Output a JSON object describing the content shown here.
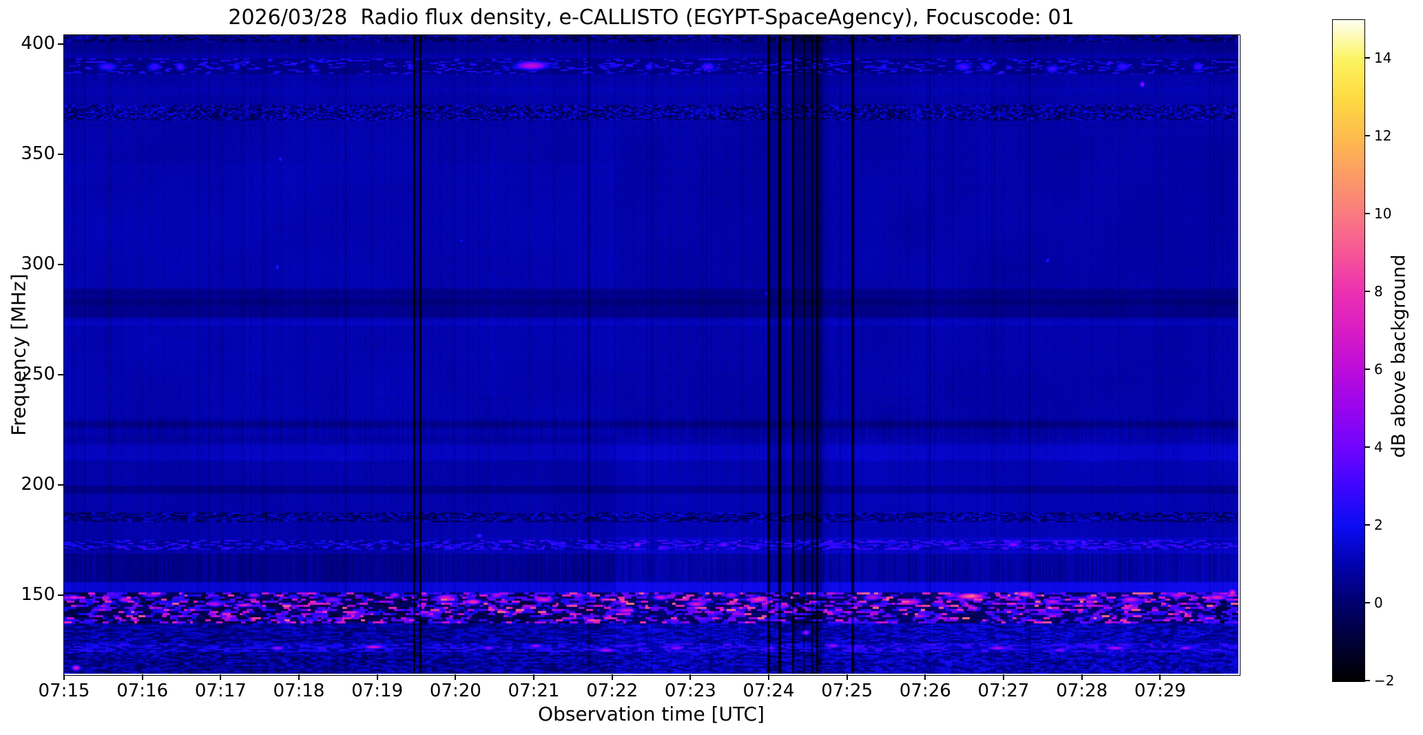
{
  "figure": {
    "title": "2026/03/28  Radio flux density, e-CALLISTO (EGYPT-SpaceAgency), Focuscode: 01"
  },
  "chart_data": {
    "type": "heatmap",
    "title": "2026/03/28  Radio flux density, e-CALLISTO (EGYPT-SpaceAgency), Focuscode: 01",
    "xlabel": "Observation time [UTC]",
    "ylabel": "Frequency [MHz]",
    "colorbar_label": "dB above background",
    "time_axis": {
      "start": "07:15",
      "end": "07:30",
      "span_min": 15,
      "tick_labels": [
        "07:15",
        "07:16",
        "07:17",
        "07:18",
        "07:19",
        "07:20",
        "07:21",
        "07:22",
        "07:23",
        "07:24",
        "07:25",
        "07:26",
        "07:27",
        "07:28",
        "07:29"
      ]
    },
    "freq_axis": {
      "min": 114.2,
      "max": 404.2,
      "unit": "MHz",
      "ticks": [
        400,
        350,
        300,
        250,
        200,
        150
      ]
    },
    "value_axis": {
      "min": -2,
      "max": 15,
      "unit": "dB",
      "ticks": [
        14,
        12,
        10,
        8,
        6,
        4,
        2,
        0,
        -2
      ]
    },
    "colormap": {
      "name": "gnuplot2-like",
      "stops": [
        {
          "v": -2,
          "c": [
            0,
            0,
            0
          ]
        },
        {
          "v": -1,
          "c": [
            0,
            0,
            55
          ]
        },
        {
          "v": 0,
          "c": [
            0,
            0,
            110
          ]
        },
        {
          "v": 1,
          "c": [
            2,
            2,
            175
          ]
        },
        {
          "v": 2,
          "c": [
            12,
            12,
            245
          ]
        },
        {
          "v": 3,
          "c": [
            62,
            5,
            255
          ]
        },
        {
          "v": 4,
          "c": [
            112,
            5,
            255
          ]
        },
        {
          "v": 5,
          "c": [
            152,
            5,
            238
          ]
        },
        {
          "v": 6,
          "c": [
            188,
            12,
            218
          ]
        },
        {
          "v": 7,
          "c": [
            216,
            28,
            198
          ]
        },
        {
          "v": 8,
          "c": [
            236,
            48,
            178
          ]
        },
        {
          "v": 9,
          "c": [
            246,
            86,
            152
          ]
        },
        {
          "v": 10,
          "c": [
            250,
            122,
            128
          ]
        },
        {
          "v": 11,
          "c": [
            252,
            156,
            102
          ]
        },
        {
          "v": 12,
          "c": [
            253,
            188,
            78
          ]
        },
        {
          "v": 13,
          "c": [
            254,
            218,
            66
          ]
        },
        {
          "v": 14,
          "c": [
            252,
            244,
            98
          ]
        },
        {
          "v": 15,
          "c": [
            255,
            255,
            242
          ]
        }
      ]
    },
    "render": {
      "seed": 42,
      "base": {
        "value": 1.05,
        "noise": 0.3
      },
      "regions": [
        {
          "t0": 7.05,
          "t1": 15,
          "f0": 114,
          "f1": 176,
          "dv": 0.45
        },
        {
          "t0": 7.05,
          "t1": 15,
          "f0": 176,
          "f1": 222,
          "dv": 0.15
        },
        {
          "t0": 4.62,
          "t1": 7.05,
          "f0": 114,
          "f1": 176,
          "dv": 0.12
        },
        {
          "t0": 0,
          "t1": 7.05,
          "f0": 222,
          "f1": 345,
          "dv": 0.08
        },
        {
          "t0": 7.05,
          "t1": 15,
          "f0": 290,
          "f1": 405,
          "dv": -0.06
        },
        {
          "t0": 14.72,
          "t1": 15,
          "f0": 137,
          "f1": 151,
          "dv": -0.5
        }
      ],
      "bands": [
        {
          "f0": 401,
          "f1": 404.2,
          "mode": "speckle",
          "base": -0.7,
          "var": 1.1,
          "run": 3
        },
        {
          "f0": 396,
          "f1": 401,
          "mode": "dim",
          "dv": -0.35
        },
        {
          "f0": 386.5,
          "f1": 393.5,
          "mode": "dim",
          "dv": -0.2
        },
        {
          "f0": 386.5,
          "f1": 393.5,
          "mode": "dashes",
          "prob": 0.22,
          "lo": 0.8,
          "hi": 2.0,
          "run": 4
        },
        {
          "f0": 377,
          "f1": 381,
          "mode": "dim",
          "dv": 0.1
        },
        {
          "f0": 365.5,
          "f1": 372.5,
          "mode": "speckle",
          "base": -0.3,
          "var": 1.4,
          "run": 2
        },
        {
          "f0": 276,
          "f1": 289,
          "mode": "dim",
          "dv": -0.5
        },
        {
          "f0": 281.5,
          "f1": 284.5,
          "mode": "dim",
          "dv": -0.25
        },
        {
          "f0": 272,
          "f1": 275,
          "mode": "dim",
          "dv": 0.2
        },
        {
          "f0": 226,
          "f1": 229,
          "mode": "dim",
          "dv": -0.45
        },
        {
          "f0": 219,
          "f1": 231,
          "mode": "hatch",
          "amp": 0.3,
          "dv": 0
        },
        {
          "f0": 211,
          "f1": 218,
          "mode": "dim",
          "dv": 0.3
        },
        {
          "f0": 196,
          "f1": 199.5,
          "mode": "dim",
          "dv": -0.55
        },
        {
          "f0": 183,
          "f1": 187.5,
          "mode": "speckle",
          "base": -0.5,
          "var": 1.3,
          "run": 3
        },
        {
          "f0": 170.5,
          "f1": 175,
          "mode": "dashes",
          "prob": 0.45,
          "lo": 0.6,
          "hi": 2.0,
          "run": 4
        },
        {
          "f0": 156,
          "f1": 168.5,
          "mode": "hatch",
          "amp": 0.55,
          "dv": -0.3
        },
        {
          "f0": 151,
          "f1": 155.5,
          "mode": "dim",
          "dv": 0.55
        },
        {
          "f0": 137,
          "f1": 151,
          "mode": "rfi"
        },
        {
          "f0": 128,
          "f1": 137,
          "mode": "speckle",
          "base": -0.25,
          "var": 1.0,
          "run": 5
        },
        {
          "f0": 124,
          "f1": 128,
          "mode": "dashes",
          "prob": 0.5,
          "lo": 0.5,
          "hi": 1.8,
          "run": 5
        },
        {
          "f0": 114.2,
          "f1": 124,
          "mode": "speckle",
          "base": -0.35,
          "var": 1.1,
          "run": 4
        }
      ],
      "vlines": [
        {
          "t": 4.47,
          "w": 3,
          "dv": -2.6
        },
        {
          "t": 4.55,
          "w": 3,
          "dv": -2.6
        },
        {
          "t": 6.7,
          "w": 2,
          "dv": -1.0
        },
        {
          "t": 9.0,
          "w": 4,
          "dv": -2.8
        },
        {
          "t": 9.14,
          "w": 4,
          "dv": -2.8
        },
        {
          "t": 9.31,
          "w": 3,
          "dv": -2.8
        },
        {
          "t": 9.45,
          "w": 2,
          "dv": -1.5
        },
        {
          "t": 9.55,
          "w": 2,
          "dv": -2.0
        },
        {
          "t": 9.62,
          "w": 3,
          "dv": -2.8
        },
        {
          "t": 10.07,
          "w": 4,
          "dv": -2.8
        },
        {
          "t": 11.06,
          "w": 2,
          "dv": -0.7
        },
        {
          "t": 12.33,
          "w": 2,
          "dv": -0.9
        }
      ],
      "smears": [
        {
          "t0": 9.28,
          "t1": 9.72,
          "dv": -0.75
        },
        {
          "t0": 8.98,
          "t1": 9.25,
          "dv": -0.25
        }
      ],
      "blobs": [
        {
          "t": 0.55,
          "f": 390,
          "wt": 0.3,
          "hf": 4.5,
          "v": 3.2
        },
        {
          "t": 1.15,
          "f": 390,
          "wt": 0.2,
          "hf": 4.5,
          "v": 3.0
        },
        {
          "t": 1.48,
          "f": 390,
          "wt": 0.14,
          "hf": 4.5,
          "v": 3.4
        },
        {
          "t": 2.2,
          "f": 390,
          "wt": 0.12,
          "hf": 4.0,
          "v": 2.6
        },
        {
          "t": 3.17,
          "f": 390,
          "wt": 0.1,
          "hf": 3.5,
          "v": 2.4
        },
        {
          "t": 4.42,
          "f": 390,
          "wt": 0.1,
          "hf": 3.5,
          "v": 2.6
        },
        {
          "t": 5.97,
          "f": 390.5,
          "wt": 0.48,
          "hf": 4.5,
          "v": 6.2
        },
        {
          "t": 7.47,
          "f": 390,
          "wt": 0.12,
          "hf": 4.0,
          "v": 2.8
        },
        {
          "t": 8.22,
          "f": 390,
          "wt": 0.22,
          "hf": 4.5,
          "v": 3.4
        },
        {
          "t": 9.57,
          "f": 390,
          "wt": 0.1,
          "hf": 3.5,
          "v": 2.5
        },
        {
          "t": 10.47,
          "f": 390,
          "wt": 0.1,
          "hf": 3.5,
          "v": 2.6
        },
        {
          "t": 11.48,
          "f": 390,
          "wt": 0.26,
          "hf": 4.5,
          "v": 3.2
        },
        {
          "t": 11.78,
          "f": 390,
          "wt": 0.16,
          "hf": 4.5,
          "v": 3.0
        },
        {
          "t": 12.62,
          "f": 389,
          "wt": 0.2,
          "hf": 4.0,
          "v": 3.2
        },
        {
          "t": 13.52,
          "f": 390,
          "wt": 0.2,
          "hf": 4.5,
          "v": 3.0
        },
        {
          "t": 14.48,
          "f": 390,
          "wt": 0.16,
          "hf": 4.5,
          "v": 3.2
        },
        {
          "t": 13.77,
          "f": 382,
          "wt": 0.07,
          "hf": 3.0,
          "v": 5.5
        },
        {
          "t": 2.76,
          "f": 348,
          "wt": 0.06,
          "hf": 2.5,
          "v": 2.8
        },
        {
          "t": 2.72,
          "f": 299,
          "wt": 0.06,
          "hf": 2.5,
          "v": 3.0
        },
        {
          "t": 5.07,
          "f": 311,
          "wt": 0.05,
          "hf": 2.0,
          "v": 2.4
        },
        {
          "t": 12.56,
          "f": 302,
          "wt": 0.06,
          "hf": 2.5,
          "v": 3.0
        },
        {
          "t": 8.97,
          "f": 287,
          "wt": 0.05,
          "hf": 2.0,
          "v": 2.6
        },
        {
          "t": 7.32,
          "f": 173,
          "wt": 0.12,
          "hf": 3.0,
          "v": 5.2
        },
        {
          "t": 8.42,
          "f": 173,
          "wt": 0.16,
          "hf": 3.0,
          "v": 4.2
        },
        {
          "t": 12.12,
          "f": 173,
          "wt": 0.2,
          "hf": 3.0,
          "v": 4.8
        },
        {
          "t": 13.02,
          "f": 174,
          "wt": 0.1,
          "hf": 3.0,
          "v": 3.8
        },
        {
          "t": 5.3,
          "f": 177,
          "wt": 0.1,
          "hf": 2.5,
          "v": 3.5
        },
        {
          "t": 0.12,
          "f": 149,
          "wt": 0.16,
          "hf": 3.0,
          "v": 6.0
        },
        {
          "t": 0.78,
          "f": 148,
          "wt": 0.22,
          "hf": 3.0,
          "v": 6.5
        },
        {
          "t": 1.12,
          "f": 150,
          "wt": 0.3,
          "hf": 2.5,
          "v": 5.0
        },
        {
          "t": 1.92,
          "f": 146,
          "wt": 0.25,
          "hf": 3.0,
          "v": 6.0
        },
        {
          "t": 2.3,
          "f": 145.5,
          "wt": 0.3,
          "hf": 2.0,
          "v": 7.5
        },
        {
          "t": 2.42,
          "f": 150,
          "wt": 0.2,
          "hf": 2.5,
          "v": 5.5
        },
        {
          "t": 3.42,
          "f": 148,
          "wt": 0.3,
          "hf": 3.0,
          "v": 5.0
        },
        {
          "t": 3.95,
          "f": 126.5,
          "wt": 0.3,
          "hf": 2.0,
          "v": 7.0
        },
        {
          "t": 4.22,
          "f": 150,
          "wt": 0.16,
          "hf": 3.0,
          "v": 6.0
        },
        {
          "t": 4.87,
          "f": 149,
          "wt": 0.3,
          "hf": 3.0,
          "v": 7.0
        },
        {
          "t": 5.22,
          "f": 147,
          "wt": 0.26,
          "hf": 3.0,
          "v": 8.0
        },
        {
          "t": 5.52,
          "f": 150,
          "wt": 0.2,
          "hf": 3.0,
          "v": 6.0
        },
        {
          "t": 6.12,
          "f": 148,
          "wt": 0.3,
          "hf": 3.0,
          "v": 7.5
        },
        {
          "t": 6.57,
          "f": 150,
          "wt": 0.16,
          "hf": 3.0,
          "v": 5.5
        },
        {
          "t": 7.17,
          "f": 143,
          "wt": 0.3,
          "hf": 3.0,
          "v": 6.5
        },
        {
          "t": 7.62,
          "f": 149,
          "wt": 0.26,
          "hf": 3.0,
          "v": 6.5
        },
        {
          "t": 8.07,
          "f": 146,
          "wt": 0.3,
          "hf": 3.0,
          "v": 7.0
        },
        {
          "t": 8.52,
          "f": 150,
          "wt": 0.2,
          "hf": 3.0,
          "v": 6.0
        },
        {
          "t": 8.87,
          "f": 148,
          "wt": 0.36,
          "hf": 3.0,
          "v": 8.5
        },
        {
          "t": 9.17,
          "f": 145,
          "wt": 0.2,
          "hf": 3.0,
          "v": 6.0
        },
        {
          "t": 9.47,
          "f": 133,
          "wt": 0.13,
          "hf": 3.0,
          "v": 6.5
        },
        {
          "t": 10.32,
          "f": 149,
          "wt": 0.26,
          "hf": 3.0,
          "v": 6.0
        },
        {
          "t": 10.82,
          "f": 147,
          "wt": 0.3,
          "hf": 3.0,
          "v": 7.0
        },
        {
          "t": 11.32,
          "f": 150,
          "wt": 0.2,
          "hf": 3.0,
          "v": 5.5
        },
        {
          "t": 11.57,
          "f": 149.5,
          "wt": 0.46,
          "hf": 3.5,
          "v": 9.5
        },
        {
          "t": 12.27,
          "f": 150.5,
          "wt": 0.3,
          "hf": 3.0,
          "v": 9.0
        },
        {
          "t": 12.62,
          "f": 147,
          "wt": 0.26,
          "hf": 3.0,
          "v": 6.5
        },
        {
          "t": 13.12,
          "f": 149,
          "wt": 0.2,
          "hf": 3.0,
          "v": 6.0
        },
        {
          "t": 13.62,
          "f": 148,
          "wt": 0.3,
          "hf": 3.0,
          "v": 7.0
        },
        {
          "t": 14.22,
          "f": 150,
          "wt": 0.26,
          "hf": 3.0,
          "v": 6.5
        },
        {
          "t": 14.72,
          "f": 149,
          "wt": 0.3,
          "hf": 3.0,
          "v": 7.5
        },
        {
          "t": 14.92,
          "f": 151,
          "wt": 0.12,
          "hf": 4.0,
          "v": 8.0
        },
        {
          "t": 2.72,
          "f": 126,
          "wt": 0.2,
          "hf": 2.0,
          "v": 5.5
        },
        {
          "t": 5.42,
          "f": 126,
          "wt": 0.16,
          "hf": 2.0,
          "v": 5.0
        },
        {
          "t": 6.02,
          "f": 127,
          "wt": 0.2,
          "hf": 2.0,
          "v": 5.5
        },
        {
          "t": 6.92,
          "f": 125,
          "wt": 0.26,
          "hf": 2.0,
          "v": 6.0
        },
        {
          "t": 7.82,
          "f": 126,
          "wt": 0.2,
          "hf": 2.0,
          "v": 5.5
        },
        {
          "t": 9.02,
          "f": 126,
          "wt": 0.16,
          "hf": 2.0,
          "v": 5.0
        },
        {
          "t": 9.82,
          "f": 127,
          "wt": 0.2,
          "hf": 2.0,
          "v": 5.5
        },
        {
          "t": 11.92,
          "f": 126,
          "wt": 0.26,
          "hf": 2.0,
          "v": 6.0
        },
        {
          "t": 12.72,
          "f": 125,
          "wt": 0.2,
          "hf": 2.0,
          "v": 5.0
        },
        {
          "t": 13.42,
          "f": 126,
          "wt": 0.3,
          "hf": 2.0,
          "v": 6.0
        },
        {
          "t": 14.32,
          "f": 126,
          "wt": 0.2,
          "hf": 2.0,
          "v": 5.5
        },
        {
          "t": 0.15,
          "f": 117,
          "wt": 0.13,
          "hf": 3.0,
          "v": 7.0
        }
      ]
    }
  }
}
